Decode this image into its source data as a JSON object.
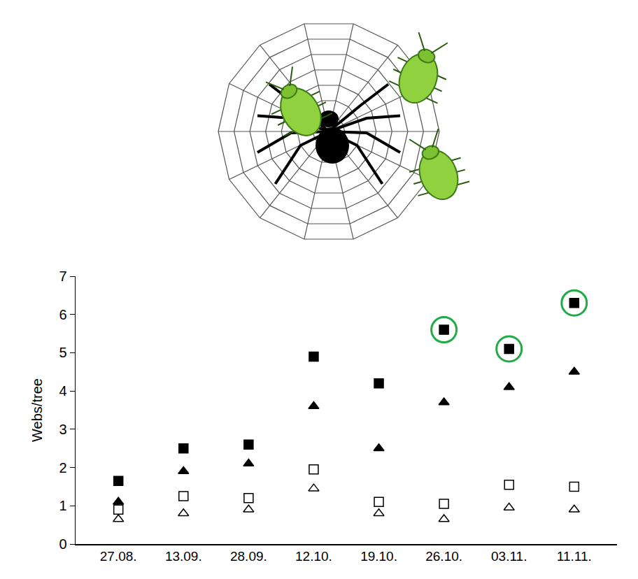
{
  "chart_data": {
    "type": "scatter",
    "y_label": "Webs/tree",
    "categories": [
      "27.08.",
      "13.09.",
      "28.09.",
      "12.10.",
      "19.10.",
      "26.10.",
      "03.11.",
      "11.11."
    ],
    "series": [
      {
        "color": "#000000",
        "marker": "square",
        "values": [
          1.65,
          2.5,
          2.6,
          4.9,
          4.2,
          5.6,
          5.1,
          6.3
        ]
      },
      {
        "color": "#000000",
        "marker": "triangle-up",
        "values": [
          1.1,
          1.9,
          2.1,
          3.6,
          2.5,
          3.7,
          4.1,
          4.5
        ]
      },
      {
        "color": "#000000",
        "marker": "square-open",
        "values": [
          0.9,
          1.25,
          1.2,
          1.95,
          1.1,
          1.05,
          1.55,
          1.5
        ]
      },
      {
        "color": "#000000",
        "marker": "triangle-up-open",
        "values": [
          0.65,
          0.8,
          0.9,
          1.45,
          0.8,
          0.65,
          0.95,
          0.9
        ]
      },
      {
        "color": "#22aa44",
        "marker": "circle-open",
        "values": [
          null,
          null,
          null,
          null,
          null,
          5.6,
          5.1,
          6.3
        ]
      }
    ],
    "ylim": [
      0,
      7
    ],
    "yticks": [
      0,
      1,
      2,
      3,
      4,
      5,
      6,
      7
    ],
    "grid": false
  }
}
